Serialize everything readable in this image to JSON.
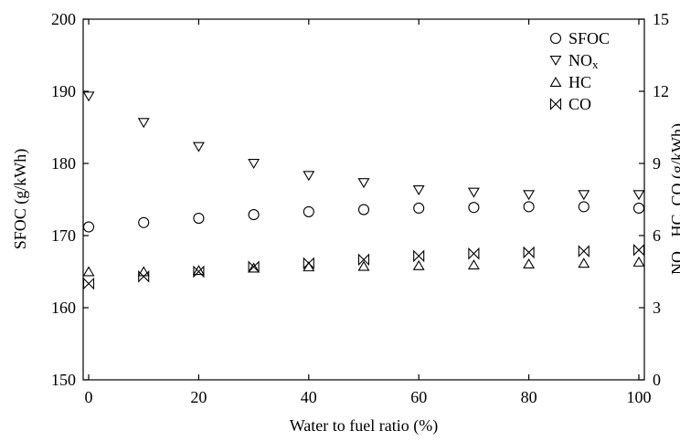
{
  "chart_data": {
    "type": "scatter",
    "xlabel": "Water to fuel ratio (%)",
    "ylabel_left": "SFOC (g/kWh)",
    "ylabel_right": {
      "parts": [
        "NO",
        "x",
        ", HC, CO (g/kWh)"
      ]
    },
    "xlim": [
      -1,
      101
    ],
    "ylim_left": [
      150,
      200
    ],
    "ylim_right": [
      0,
      15
    ],
    "x_ticks": [
      0,
      20,
      40,
      60,
      80,
      100
    ],
    "y_left_ticks": [
      150,
      160,
      170,
      180,
      190,
      200
    ],
    "y_right_ticks": [
      0,
      3,
      6,
      9,
      12,
      15
    ],
    "legend": {
      "position": "top-right",
      "entries": [
        {
          "label": "SFOC",
          "sub": ""
        },
        {
          "label": "NO",
          "sub": "x"
        },
        {
          "label": "HC",
          "sub": ""
        },
        {
          "label": "CO",
          "sub": ""
        }
      ]
    },
    "series": [
      {
        "key": "SFOC",
        "axis": "left",
        "marker": "circle",
        "x": [
          0,
          10,
          20,
          30,
          40,
          50,
          60,
          70,
          80,
          90,
          100
        ],
        "y": [
          171.2,
          171.8,
          172.4,
          172.9,
          173.3,
          173.6,
          173.8,
          173.9,
          174.0,
          174.0,
          173.8
        ]
      },
      {
        "key": "NOx",
        "axis": "right",
        "marker": "triangle-down",
        "x": [
          0,
          10,
          20,
          30,
          40,
          50,
          60,
          70,
          80,
          90,
          100
        ],
        "y": [
          11.8,
          10.7,
          9.7,
          9.0,
          8.5,
          8.2,
          7.9,
          7.8,
          7.7,
          7.7,
          7.7
        ]
      },
      {
        "key": "HC",
        "axis": "right",
        "marker": "triangle-up",
        "x": [
          0,
          10,
          20,
          30,
          40,
          50,
          60,
          70,
          80,
          90,
          100
        ],
        "y": [
          4.5,
          4.5,
          4.55,
          4.65,
          4.7,
          4.72,
          4.75,
          4.78,
          4.82,
          4.85,
          4.9
        ]
      },
      {
        "key": "CO",
        "axis": "right",
        "marker": "bowtie",
        "x": [
          0,
          10,
          20,
          30,
          40,
          50,
          60,
          70,
          80,
          90,
          100
        ],
        "y": [
          4.0,
          4.3,
          4.5,
          4.7,
          4.85,
          5.0,
          5.15,
          5.25,
          5.3,
          5.35,
          5.4
        ]
      }
    ]
  }
}
